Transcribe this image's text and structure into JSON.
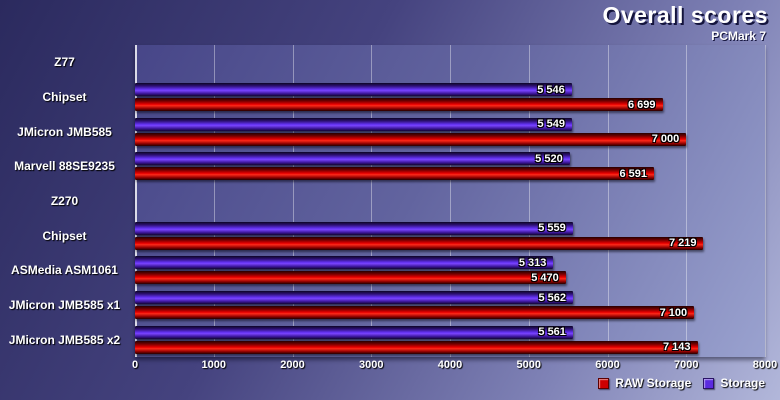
{
  "chart_data": {
    "type": "bar",
    "orientation": "horizontal",
    "title": "Overall scores",
    "subtitle": "PCMark 7",
    "xlabel": "",
    "ylabel": "",
    "xlim": [
      0,
      8000
    ],
    "xticks": [
      0,
      1000,
      2000,
      3000,
      4000,
      5000,
      6000,
      7000,
      8000
    ],
    "grid": "vertical",
    "legend_position": "bottom-right",
    "categories": [
      "Z77",
      "Chipset",
      "JMicron JMB585",
      "Marvell 88SE9235",
      "Z270",
      "Chipset",
      "ASMedia ASM1061",
      "JMicron JMB585 x1",
      "JMicron JMB585 x2"
    ],
    "series": [
      {
        "name": "Storage",
        "key": "storage",
        "color": "#5b2be0",
        "values": [
          null,
          5546,
          5549,
          5520,
          null,
          5559,
          5313,
          5562,
          5561
        ],
        "labels": [
          "",
          "5 546",
          "5 549",
          "5 520",
          "",
          "5 559",
          "5 313",
          "5 562",
          "5 561"
        ]
      },
      {
        "name": "RAW Storage",
        "key": "raw",
        "color": "#cc0000",
        "values": [
          null,
          6699,
          7000,
          6591,
          null,
          7219,
          5470,
          7100,
          7143
        ],
        "labels": [
          "",
          "6 699",
          "7 000",
          "6 591",
          "",
          "7 219",
          "5 470",
          "7 100",
          "7 143"
        ]
      }
    ],
    "legend": [
      {
        "name": "RAW Storage",
        "key": "raw",
        "color": "#cc0000"
      },
      {
        "name": "Storage",
        "key": "storage",
        "color": "#5b2be0"
      }
    ]
  }
}
